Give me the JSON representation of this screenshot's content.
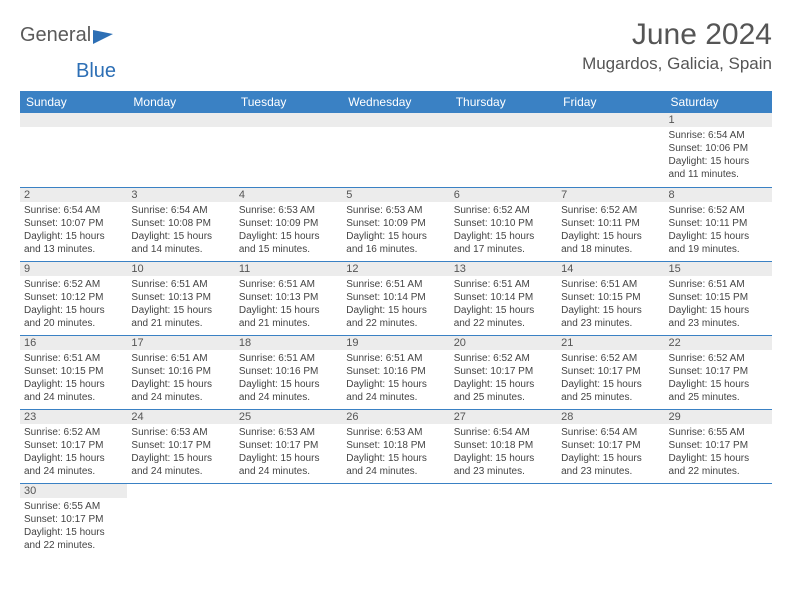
{
  "brand": {
    "name1": "General",
    "name2": "Blue"
  },
  "title": "June 2024",
  "location": "Mugardos, Galicia, Spain",
  "colors": {
    "header_bg": "#3a81c4",
    "header_text": "#ffffff",
    "daynum_bg": "#ececec",
    "border": "#3a81c4",
    "brand_gray": "#5a5a5a",
    "brand_blue": "#2d6fb5"
  },
  "weekdays": [
    "Sunday",
    "Monday",
    "Tuesday",
    "Wednesday",
    "Thursday",
    "Friday",
    "Saturday"
  ],
  "weeks": [
    [
      null,
      null,
      null,
      null,
      null,
      null,
      {
        "n": "1",
        "sr": "Sunrise: 6:54 AM",
        "ss": "Sunset: 10:06 PM",
        "dl": "Daylight: 15 hours and 11 minutes."
      }
    ],
    [
      {
        "n": "2",
        "sr": "Sunrise: 6:54 AM",
        "ss": "Sunset: 10:07 PM",
        "dl": "Daylight: 15 hours and 13 minutes."
      },
      {
        "n": "3",
        "sr": "Sunrise: 6:54 AM",
        "ss": "Sunset: 10:08 PM",
        "dl": "Daylight: 15 hours and 14 minutes."
      },
      {
        "n": "4",
        "sr": "Sunrise: 6:53 AM",
        "ss": "Sunset: 10:09 PM",
        "dl": "Daylight: 15 hours and 15 minutes."
      },
      {
        "n": "5",
        "sr": "Sunrise: 6:53 AM",
        "ss": "Sunset: 10:09 PM",
        "dl": "Daylight: 15 hours and 16 minutes."
      },
      {
        "n": "6",
        "sr": "Sunrise: 6:52 AM",
        "ss": "Sunset: 10:10 PM",
        "dl": "Daylight: 15 hours and 17 minutes."
      },
      {
        "n": "7",
        "sr": "Sunrise: 6:52 AM",
        "ss": "Sunset: 10:11 PM",
        "dl": "Daylight: 15 hours and 18 minutes."
      },
      {
        "n": "8",
        "sr": "Sunrise: 6:52 AM",
        "ss": "Sunset: 10:11 PM",
        "dl": "Daylight: 15 hours and 19 minutes."
      }
    ],
    [
      {
        "n": "9",
        "sr": "Sunrise: 6:52 AM",
        "ss": "Sunset: 10:12 PM",
        "dl": "Daylight: 15 hours and 20 minutes."
      },
      {
        "n": "10",
        "sr": "Sunrise: 6:51 AM",
        "ss": "Sunset: 10:13 PM",
        "dl": "Daylight: 15 hours and 21 minutes."
      },
      {
        "n": "11",
        "sr": "Sunrise: 6:51 AM",
        "ss": "Sunset: 10:13 PM",
        "dl": "Daylight: 15 hours and 21 minutes."
      },
      {
        "n": "12",
        "sr": "Sunrise: 6:51 AM",
        "ss": "Sunset: 10:14 PM",
        "dl": "Daylight: 15 hours and 22 minutes."
      },
      {
        "n": "13",
        "sr": "Sunrise: 6:51 AM",
        "ss": "Sunset: 10:14 PM",
        "dl": "Daylight: 15 hours and 22 minutes."
      },
      {
        "n": "14",
        "sr": "Sunrise: 6:51 AM",
        "ss": "Sunset: 10:15 PM",
        "dl": "Daylight: 15 hours and 23 minutes."
      },
      {
        "n": "15",
        "sr": "Sunrise: 6:51 AM",
        "ss": "Sunset: 10:15 PM",
        "dl": "Daylight: 15 hours and 23 minutes."
      }
    ],
    [
      {
        "n": "16",
        "sr": "Sunrise: 6:51 AM",
        "ss": "Sunset: 10:15 PM",
        "dl": "Daylight: 15 hours and 24 minutes."
      },
      {
        "n": "17",
        "sr": "Sunrise: 6:51 AM",
        "ss": "Sunset: 10:16 PM",
        "dl": "Daylight: 15 hours and 24 minutes."
      },
      {
        "n": "18",
        "sr": "Sunrise: 6:51 AM",
        "ss": "Sunset: 10:16 PM",
        "dl": "Daylight: 15 hours and 24 minutes."
      },
      {
        "n": "19",
        "sr": "Sunrise: 6:51 AM",
        "ss": "Sunset: 10:16 PM",
        "dl": "Daylight: 15 hours and 24 minutes."
      },
      {
        "n": "20",
        "sr": "Sunrise: 6:52 AM",
        "ss": "Sunset: 10:17 PM",
        "dl": "Daylight: 15 hours and 25 minutes."
      },
      {
        "n": "21",
        "sr": "Sunrise: 6:52 AM",
        "ss": "Sunset: 10:17 PM",
        "dl": "Daylight: 15 hours and 25 minutes."
      },
      {
        "n": "22",
        "sr": "Sunrise: 6:52 AM",
        "ss": "Sunset: 10:17 PM",
        "dl": "Daylight: 15 hours and 25 minutes."
      }
    ],
    [
      {
        "n": "23",
        "sr": "Sunrise: 6:52 AM",
        "ss": "Sunset: 10:17 PM",
        "dl": "Daylight: 15 hours and 24 minutes."
      },
      {
        "n": "24",
        "sr": "Sunrise: 6:53 AM",
        "ss": "Sunset: 10:17 PM",
        "dl": "Daylight: 15 hours and 24 minutes."
      },
      {
        "n": "25",
        "sr": "Sunrise: 6:53 AM",
        "ss": "Sunset: 10:17 PM",
        "dl": "Daylight: 15 hours and 24 minutes."
      },
      {
        "n": "26",
        "sr": "Sunrise: 6:53 AM",
        "ss": "Sunset: 10:18 PM",
        "dl": "Daylight: 15 hours and 24 minutes."
      },
      {
        "n": "27",
        "sr": "Sunrise: 6:54 AM",
        "ss": "Sunset: 10:18 PM",
        "dl": "Daylight: 15 hours and 23 minutes."
      },
      {
        "n": "28",
        "sr": "Sunrise: 6:54 AM",
        "ss": "Sunset: 10:17 PM",
        "dl": "Daylight: 15 hours and 23 minutes."
      },
      {
        "n": "29",
        "sr": "Sunrise: 6:55 AM",
        "ss": "Sunset: 10:17 PM",
        "dl": "Daylight: 15 hours and 22 minutes."
      }
    ],
    [
      {
        "n": "30",
        "sr": "Sunrise: 6:55 AM",
        "ss": "Sunset: 10:17 PM",
        "dl": "Daylight: 15 hours and 22 minutes."
      },
      null,
      null,
      null,
      null,
      null,
      null
    ]
  ]
}
